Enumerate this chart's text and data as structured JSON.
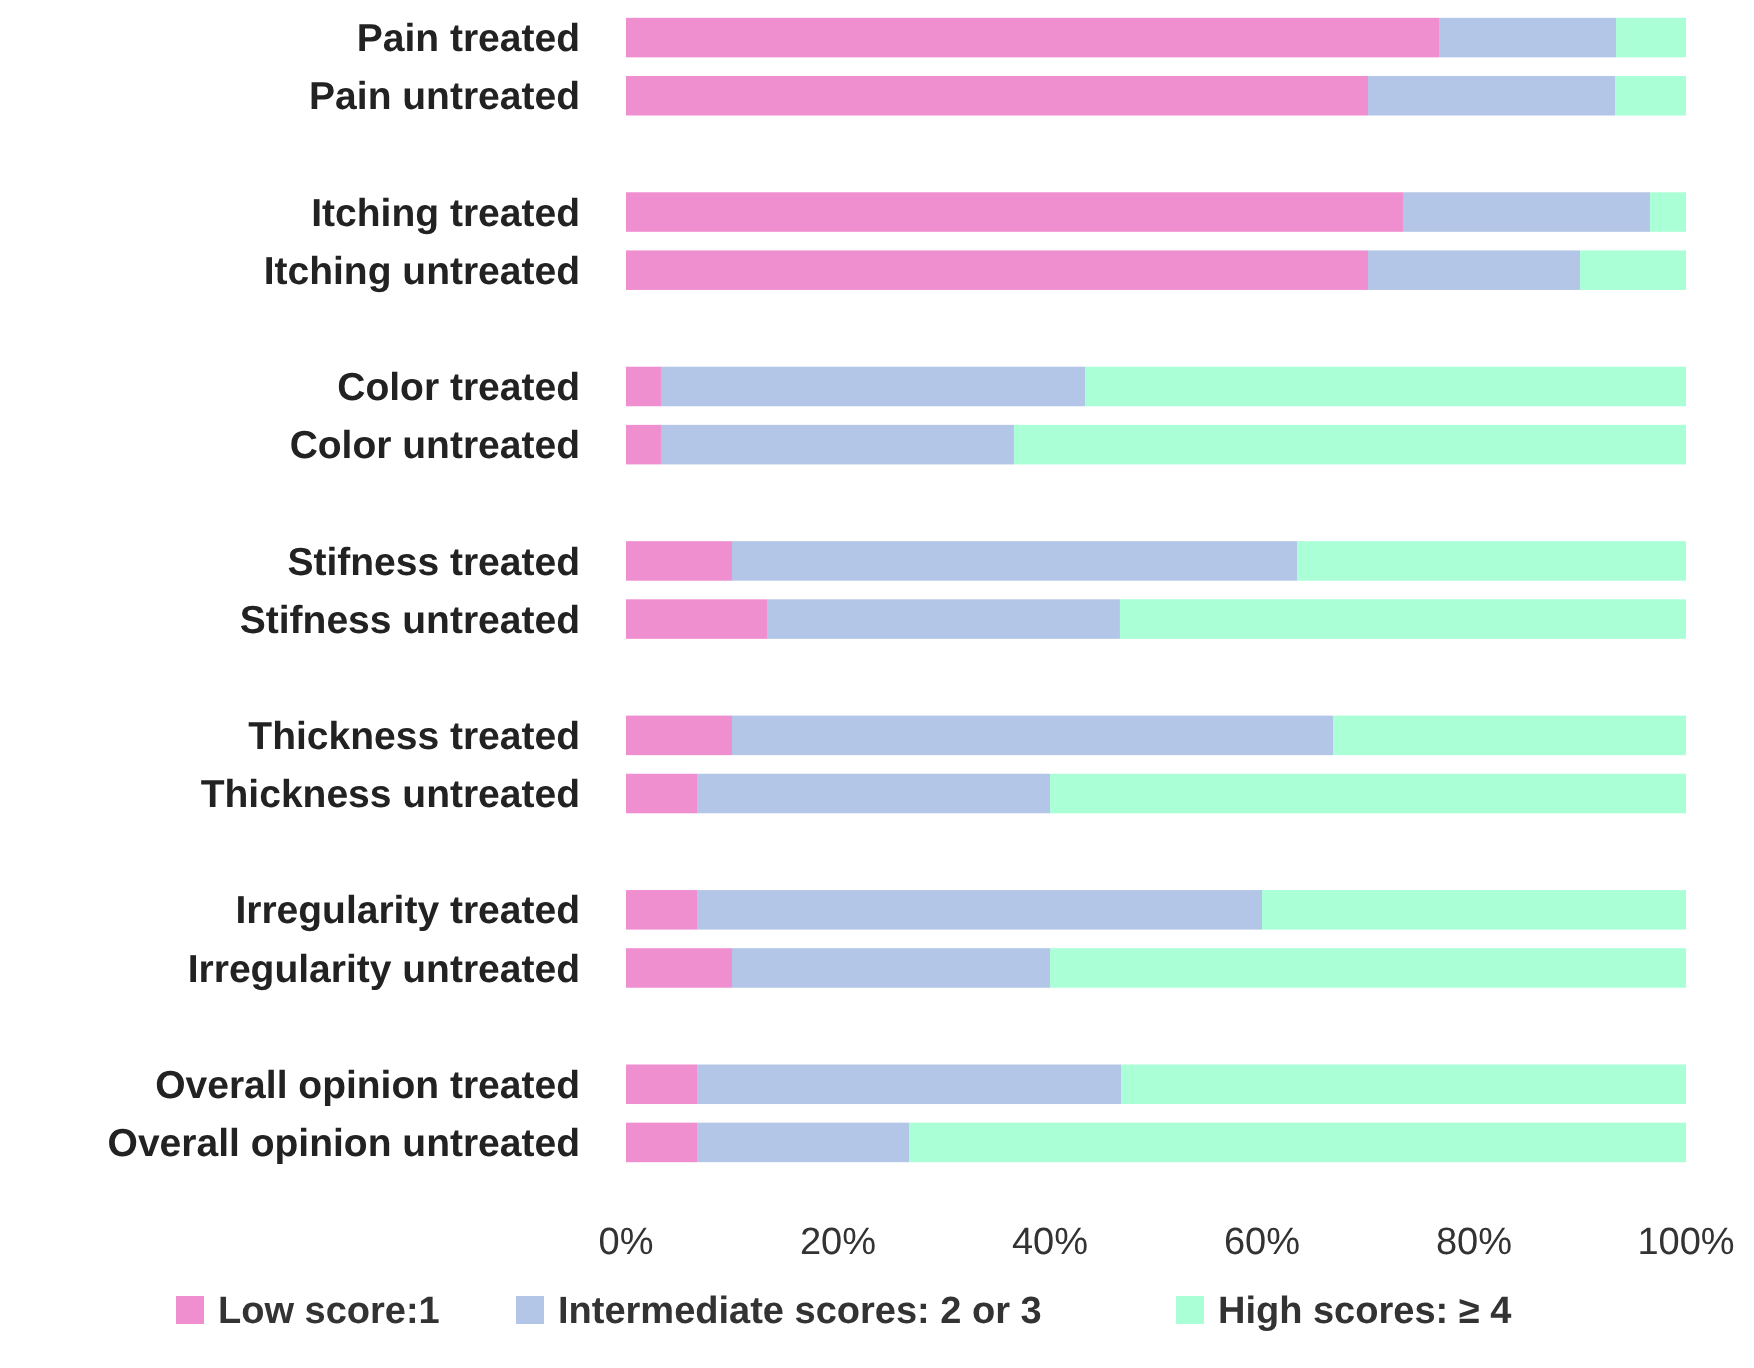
{
  "chart_data": {
    "type": "bar",
    "orientation": "horizontal",
    "stacked": true,
    "categories": [
      "Pain treated",
      "Pain untreated",
      null,
      "Itching treated",
      "Itching untreated",
      null,
      "Color treated",
      "Color untreated",
      null,
      "Stifness treated",
      "Stifness untreated",
      null,
      "Thickness treated",
      "Thickness untreated",
      null,
      "Irregularity treated",
      "Irregularity untreated",
      null,
      "Overall opinion treated",
      "Overall opinion untreated"
    ],
    "series": [
      {
        "name": "Low score:1",
        "color": "#f08fd0",
        "values": [
          76.7,
          70,
          null,
          73.3,
          70,
          null,
          3.3,
          3.3,
          null,
          10,
          13.3,
          null,
          10,
          6.7,
          null,
          6.7,
          10,
          null,
          6.7,
          6.7
        ]
      },
      {
        "name": "Intermediate scores: 2 or 3",
        "color": "#b4c6e7",
        "values": [
          16.7,
          23.3,
          null,
          23.3,
          20,
          null,
          40,
          33.3,
          null,
          53.3,
          33.3,
          null,
          56.7,
          33.3,
          null,
          53.3,
          30,
          null,
          40,
          20
        ]
      },
      {
        "name": "High scores: ≥ 4",
        "color": "#aaffd6",
        "values": [
          6.6,
          6.7,
          null,
          3.4,
          10,
          null,
          56.7,
          63.4,
          null,
          36.7,
          53.4,
          null,
          33.3,
          60,
          null,
          40,
          60,
          null,
          53.3,
          73.3
        ]
      }
    ],
    "xlim": [
      0,
      100
    ],
    "xticks": [
      {
        "value": 0,
        "label": "0%"
      },
      {
        "value": 20,
        "label": "20%"
      },
      {
        "value": 40,
        "label": "40%"
      },
      {
        "value": 60,
        "label": "60%"
      },
      {
        "value": 80,
        "label": "80%"
      },
      {
        "value": 100,
        "label": "100%"
      }
    ],
    "legend": "bottom",
    "grid": false
  }
}
